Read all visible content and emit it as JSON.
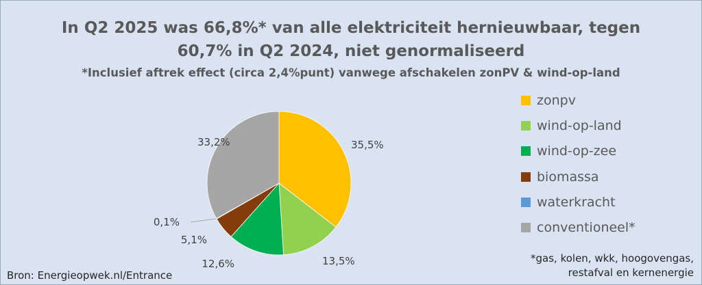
{
  "chart_data": {
    "type": "pie",
    "title": "In Q2 2025 was 66,8%* van alle elektriciteit hernieuwbaar, tegen",
    "title_line2": "60,7% in Q2 2024, niet genormaliseerd",
    "subtitle": "*Inclusief aftrek effect (circa 2,4%punt) vanwege afschakelen zonPV & wind-op-land",
    "categories": [
      "zonpv",
      "wind-op-land",
      "wind-op-zee",
      "biomassa",
      "waterkracht",
      "conventioneel*"
    ],
    "values": [
      35.5,
      13.5,
      12.6,
      5.1,
      0.1,
      33.2
    ],
    "value_labels": [
      "35,5%",
      "13,5%",
      "12,6%",
      "5,1%",
      "0,1%",
      "33,2%"
    ],
    "colors": [
      "#ffc000",
      "#92d050",
      "#00b050",
      "#843c0c",
      "#5b9bd5",
      "#a6a6a6"
    ],
    "legend_position": "right",
    "start_angle": "12 o'clock, clockwise"
  },
  "source": "Bron: Energieopwek.nl/Entrance",
  "footnote_line1": "*gas, kolen, wkk, hoogovengas,",
  "footnote_line2": "restafval en kernenergie"
}
